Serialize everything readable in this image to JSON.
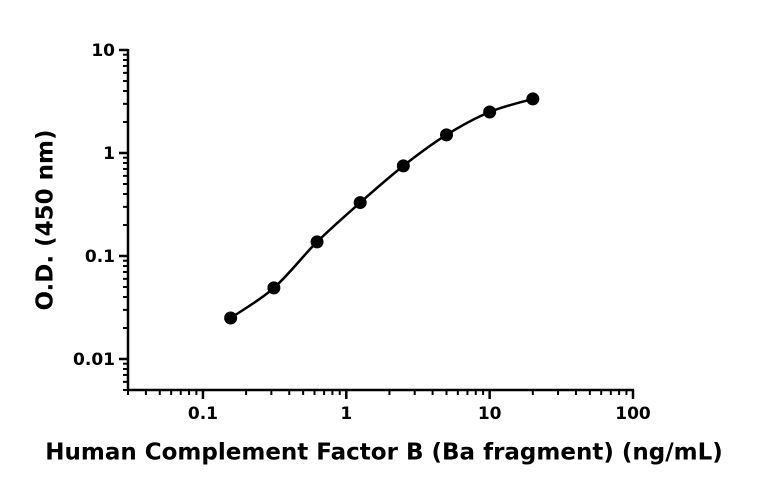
{
  "chart_data": {
    "type": "scatter",
    "x_label": "Human Complement Factor B (Ba fragment) (ng/mL)",
    "y_label": "O.D. (450 nm)",
    "x_scale": "log",
    "y_scale": "log",
    "xlim": [
      0.03,
      100
    ],
    "ylim": [
      0.005,
      10
    ],
    "xticks": [
      0.1,
      1,
      10,
      100
    ],
    "yticks": [
      0.01,
      0.1,
      1,
      10
    ],
    "minor_ticks": true,
    "series": [
      {
        "color": "#000000",
        "line": "smooth",
        "x": [
          0.156,
          0.3125,
          0.625,
          1.25,
          2.5,
          5,
          10,
          20
        ],
        "values": [
          0.025,
          0.049,
          0.137,
          0.33,
          0.75,
          1.5,
          2.5,
          3.35
        ]
      }
    ]
  }
}
